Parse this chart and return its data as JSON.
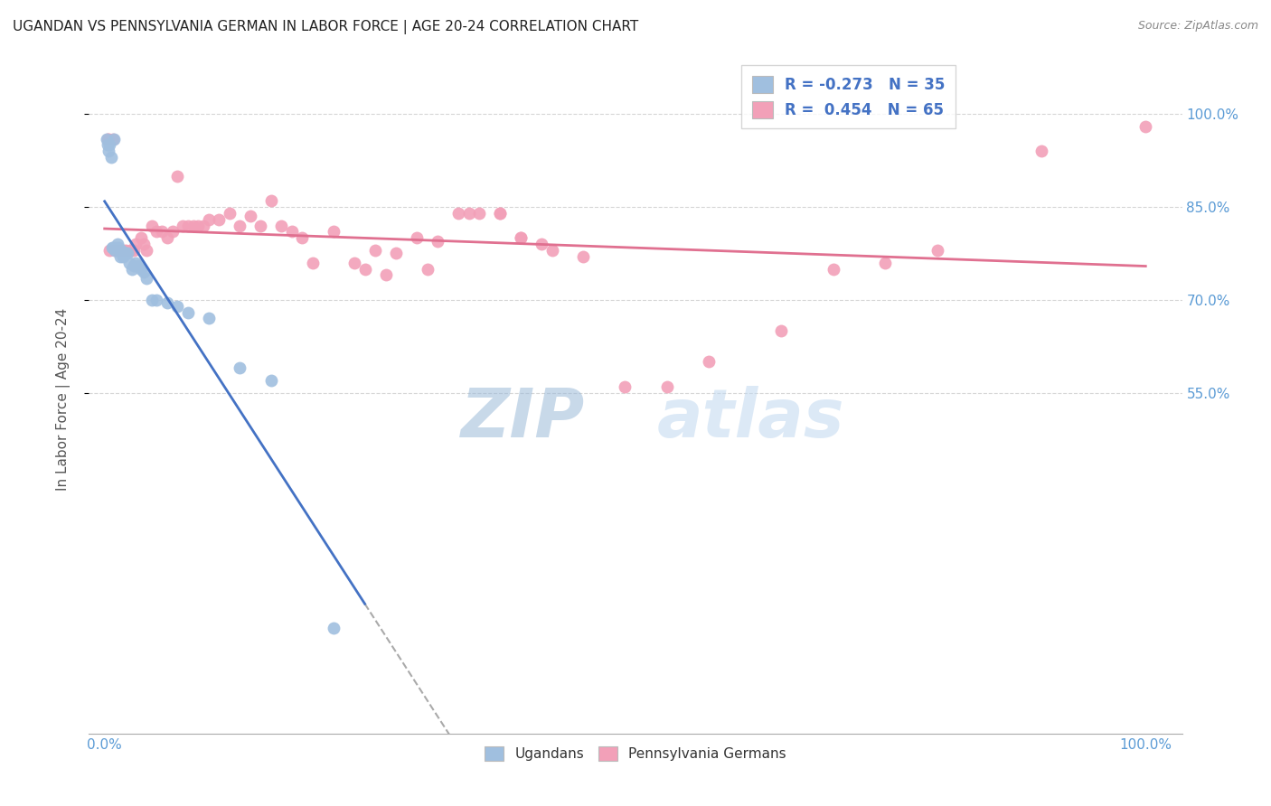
{
  "title": "UGANDAN VS PENNSYLVANIA GERMAN IN LABOR FORCE | AGE 20-24 CORRELATION CHART",
  "source": "Source: ZipAtlas.com",
  "ylabel": "In Labor Force | Age 20-24",
  "ugandan_color": "#a0bfdf",
  "penn_german_color": "#f2a0b8",
  "ugandan_R": -0.273,
  "ugandan_N": 35,
  "penn_german_R": 0.454,
  "penn_german_N": 65,
  "background_color": "#ffffff",
  "grid_color": "#cccccc",
  "axis_label_color": "#5b9bd5",
  "title_fontsize": 11,
  "y_ticks": [
    0.55,
    0.7,
    0.85,
    1.0
  ],
  "y_tick_labels": [
    "55.0%",
    "70.0%",
    "85.0%",
    "100.0%"
  ],
  "ugandan_x": [
    0.002,
    0.003,
    0.004,
    0.005,
    0.006,
    0.007,
    0.008,
    0.009,
    0.01,
    0.011,
    0.012,
    0.013,
    0.014,
    0.015,
    0.016,
    0.018,
    0.02,
    0.022,
    0.024,
    0.026,
    0.028,
    0.03,
    0.032,
    0.035,
    0.038,
    0.04,
    0.045,
    0.05,
    0.06,
    0.07,
    0.08,
    0.1,
    0.13,
    0.16,
    0.22
  ],
  "ugandan_y": [
    0.96,
    0.95,
    0.94,
    0.95,
    0.93,
    0.785,
    0.785,
    0.96,
    0.78,
    0.785,
    0.79,
    0.785,
    0.78,
    0.77,
    0.78,
    0.77,
    0.775,
    0.775,
    0.76,
    0.75,
    0.755,
    0.76,
    0.755,
    0.75,
    0.745,
    0.735,
    0.7,
    0.7,
    0.695,
    0.69,
    0.68,
    0.67,
    0.59,
    0.57,
    0.17
  ],
  "penn_x": [
    0.003,
    0.004,
    0.005,
    0.008,
    0.01,
    0.012,
    0.015,
    0.018,
    0.02,
    0.025,
    0.028,
    0.03,
    0.035,
    0.038,
    0.04,
    0.045,
    0.05,
    0.055,
    0.06,
    0.065,
    0.07,
    0.075,
    0.08,
    0.085,
    0.09,
    0.095,
    0.1,
    0.11,
    0.12,
    0.13,
    0.14,
    0.15,
    0.16,
    0.17,
    0.18,
    0.19,
    0.2,
    0.22,
    0.24,
    0.26,
    0.28,
    0.3,
    0.32,
    0.34,
    0.36,
    0.38,
    0.4,
    0.42,
    0.25,
    0.27,
    0.31,
    0.35,
    0.38,
    0.4,
    0.43,
    0.46,
    0.5,
    0.54,
    0.58,
    0.65,
    0.7,
    0.75,
    0.8,
    0.9,
    1.0
  ],
  "penn_y": [
    0.96,
    0.96,
    0.78,
    0.96,
    0.78,
    0.78,
    0.78,
    0.78,
    0.78,
    0.78,
    0.78,
    0.79,
    0.8,
    0.79,
    0.78,
    0.82,
    0.81,
    0.81,
    0.8,
    0.81,
    0.9,
    0.82,
    0.82,
    0.82,
    0.82,
    0.82,
    0.83,
    0.83,
    0.84,
    0.82,
    0.835,
    0.82,
    0.86,
    0.82,
    0.81,
    0.8,
    0.76,
    0.81,
    0.76,
    0.78,
    0.775,
    0.8,
    0.795,
    0.84,
    0.84,
    0.84,
    0.8,
    0.79,
    0.75,
    0.74,
    0.75,
    0.84,
    0.84,
    0.8,
    0.78,
    0.77,
    0.56,
    0.56,
    0.6,
    0.65,
    0.75,
    0.76,
    0.78,
    0.94,
    0.98
  ]
}
